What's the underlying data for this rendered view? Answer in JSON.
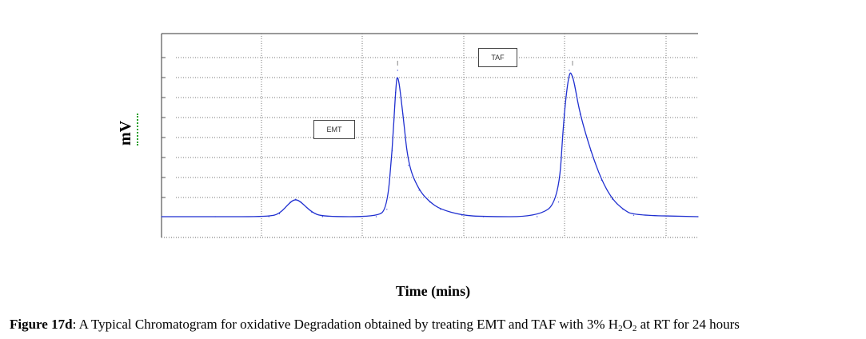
{
  "chart_data": {
    "type": "line",
    "title": "",
    "xlabel": "Time (mins)",
    "ylabel": "mV",
    "grid": true,
    "grid_style": "dotted",
    "line_color": "#1f2fd0",
    "x": [
      0,
      0.5,
      1.0,
      1.1,
      1.2,
      1.25,
      1.3,
      1.4,
      1.5,
      2.0,
      2.1,
      2.15,
      2.18,
      2.2,
      2.25,
      2.3,
      2.4,
      2.5,
      2.6,
      2.8,
      3.0,
      3.5,
      3.7,
      3.75,
      3.8,
      3.83,
      3.85,
      3.9,
      4.0,
      4.1,
      4.2,
      4.3,
      4.4,
      5.0
    ],
    "y": [
      0,
      0,
      0,
      0.02,
      0.1,
      0.12,
      0.1,
      0.03,
      0,
      0,
      0.05,
      0.45,
      0.85,
      1.0,
      0.7,
      0.35,
      0.18,
      0.1,
      0.05,
      0.01,
      0,
      0,
      0.1,
      0.7,
      1.0,
      0.96,
      0.9,
      0.7,
      0.45,
      0.25,
      0.12,
      0.05,
      0.01,
      0
    ],
    "y_scale_note": "relative",
    "annotations": [
      {
        "text": "EMT",
        "x": 2.2
      },
      {
        "text": "TAF",
        "x": 3.83
      }
    ]
  },
  "labels": {
    "y_axis": "mV",
    "x_axis": "Time (mins)"
  },
  "caption": {
    "figure_label": "Figure 17d",
    "text_before": ": A Typical Chromatogram for oxidative Degradation obtained by treating EMT and TAF with 3% H",
    "sub1": "2",
    "text_mid": "O",
    "sub2": "2",
    "text_after": " at RT for 24 hours"
  }
}
